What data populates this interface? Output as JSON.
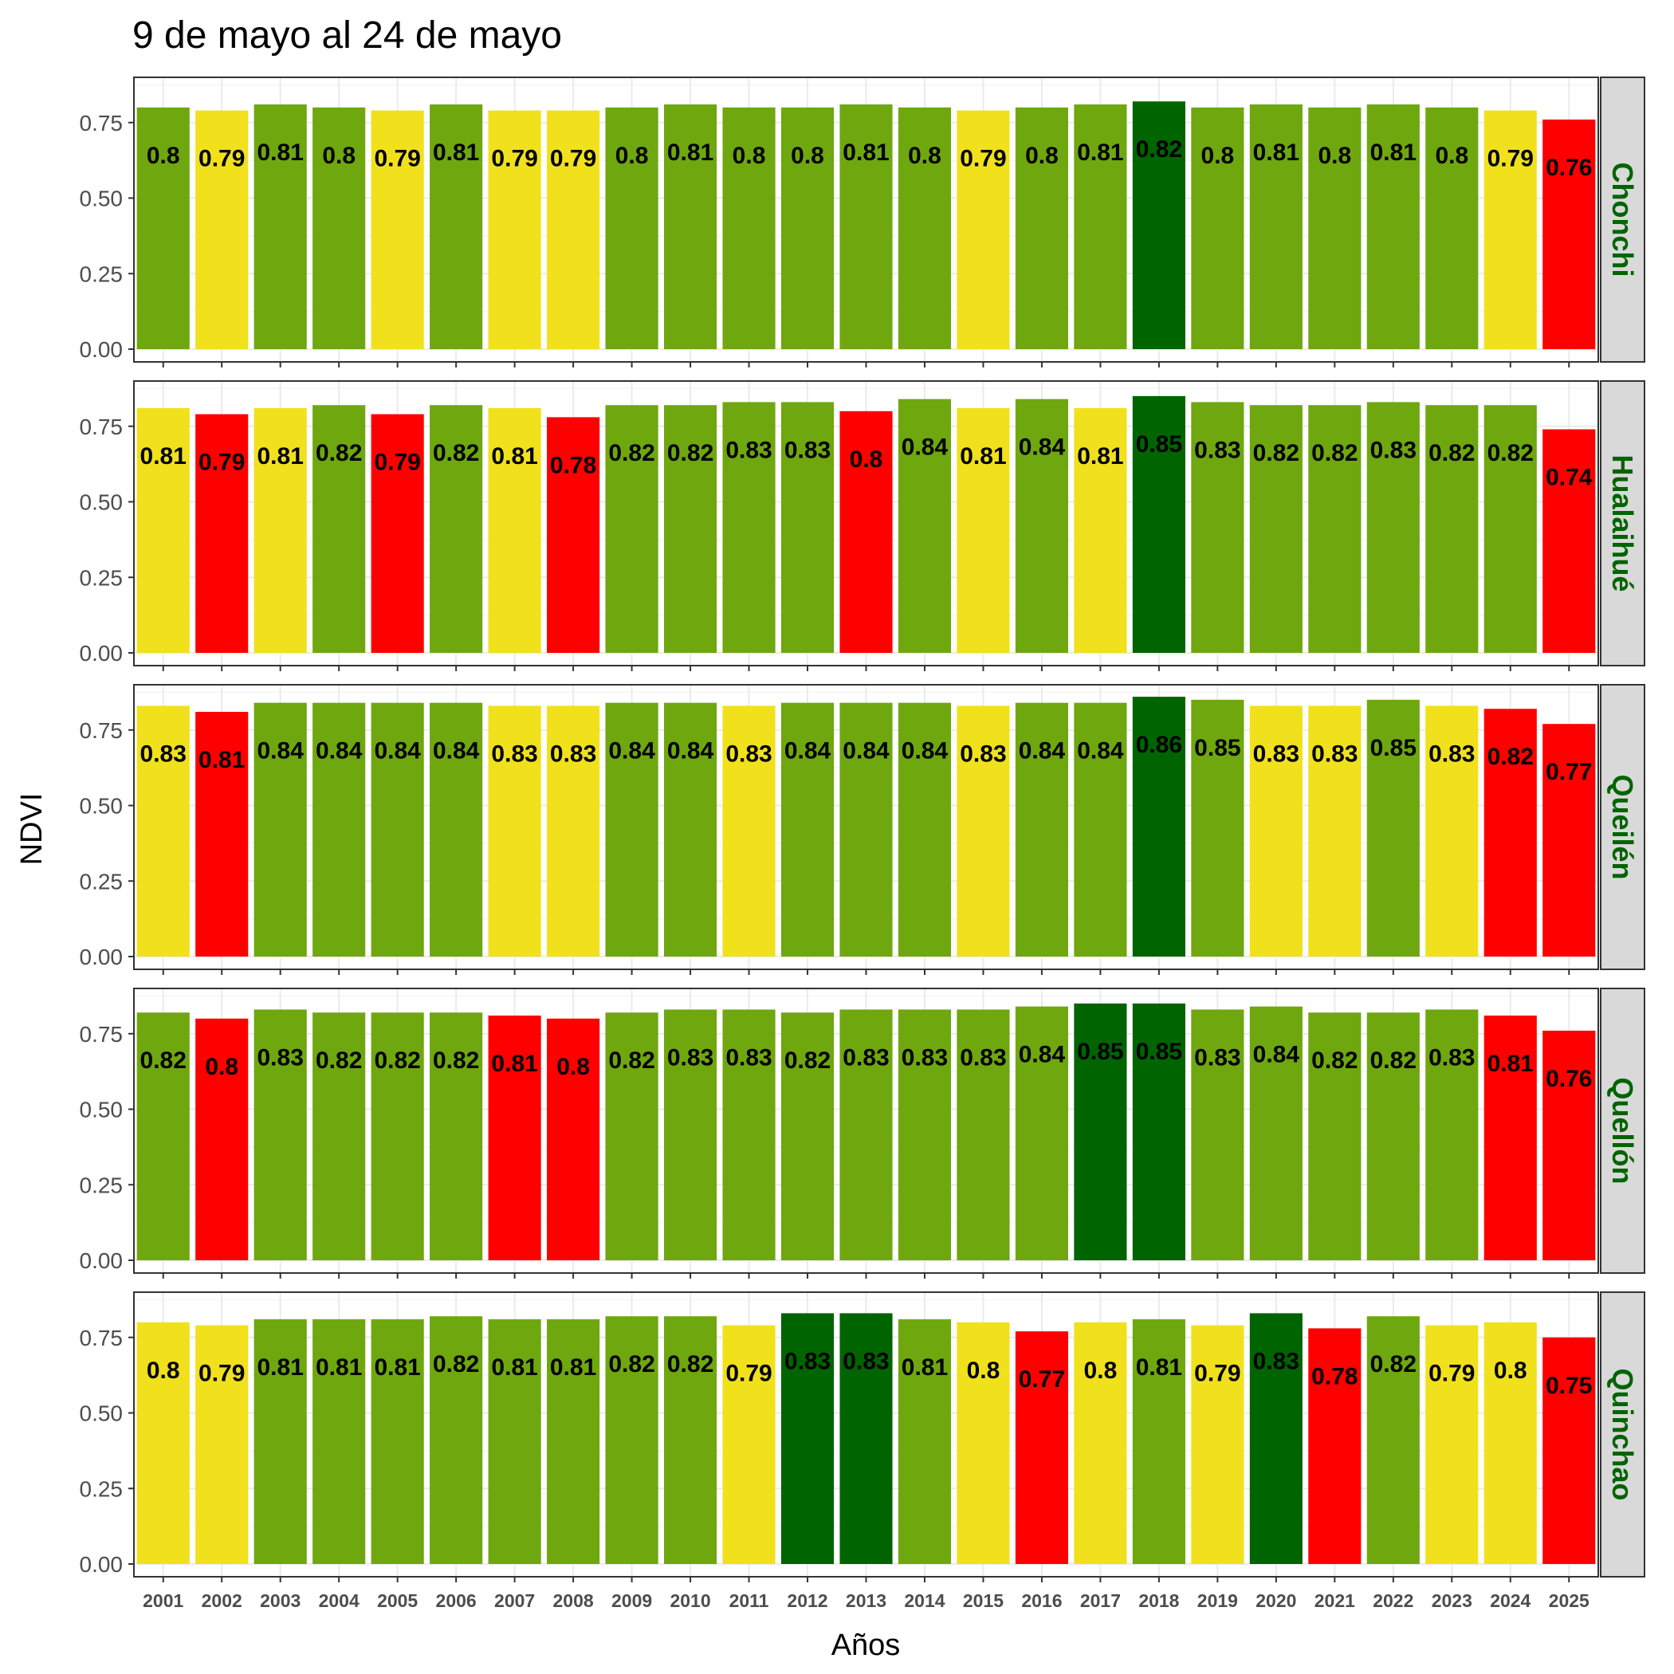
{
  "chart_data": {
    "type": "bar",
    "title": "9 de mayo al 24 de mayo",
    "xlabel": "Años",
    "ylabel": "NDVI",
    "ylim": [
      0,
      0.9
    ],
    "yticks": [
      "0.00",
      "0.25",
      "0.50",
      "0.75"
    ],
    "ytick_values": [
      0,
      0.25,
      0.5,
      0.75
    ],
    "grid": true,
    "categories": [
      "2001",
      "2002",
      "2003",
      "2004",
      "2005",
      "2006",
      "2007",
      "2008",
      "2009",
      "2010",
      "2011",
      "2012",
      "2013",
      "2014",
      "2015",
      "2016",
      "2017",
      "2018",
      "2019",
      "2020",
      "2021",
      "2022",
      "2023",
      "2024",
      "2025"
    ],
    "colors": {
      "red": "#ff0000",
      "yellow": "#f0e11c",
      "green": "#6fa70f",
      "darkgreen": "#006400"
    },
    "facets": [
      {
        "name": "Chonchi",
        "values": [
          0.8,
          0.79,
          0.81,
          0.8,
          0.79,
          0.81,
          0.79,
          0.79,
          0.8,
          0.81,
          0.8,
          0.8,
          0.81,
          0.8,
          0.79,
          0.8,
          0.81,
          0.82,
          0.8,
          0.81,
          0.8,
          0.81,
          0.8,
          0.79,
          0.76
        ],
        "labels": [
          "0.8",
          "0.79",
          "0.81",
          "0.8",
          "0.79",
          "0.81",
          "0.79",
          "0.79",
          "0.8",
          "0.81",
          "0.8",
          "0.8",
          "0.81",
          "0.8",
          "0.79",
          "0.8",
          "0.81",
          "0.82",
          "0.8",
          "0.81",
          "0.8",
          "0.81",
          "0.8",
          "0.79",
          "0.76"
        ],
        "classes": [
          "green",
          "yellow",
          "green",
          "green",
          "yellow",
          "green",
          "yellow",
          "yellow",
          "green",
          "green",
          "green",
          "green",
          "green",
          "green",
          "yellow",
          "green",
          "green",
          "darkgreen",
          "green",
          "green",
          "green",
          "green",
          "green",
          "yellow",
          "red"
        ]
      },
      {
        "name": "Hualaihué",
        "values": [
          0.81,
          0.79,
          0.81,
          0.82,
          0.79,
          0.82,
          0.81,
          0.78,
          0.82,
          0.82,
          0.83,
          0.83,
          0.8,
          0.84,
          0.81,
          0.84,
          0.81,
          0.85,
          0.83,
          0.82,
          0.82,
          0.83,
          0.82,
          0.82,
          0.74
        ],
        "labels": [
          "0.81",
          "0.79",
          "0.81",
          "0.82",
          "0.79",
          "0.82",
          "0.81",
          "0.78",
          "0.82",
          "0.82",
          "0.83",
          "0.83",
          "0.8",
          "0.84",
          "0.81",
          "0.84",
          "0.81",
          "0.85",
          "0.83",
          "0.82",
          "0.82",
          "0.83",
          "0.82",
          "0.82",
          "0.74"
        ],
        "classes": [
          "yellow",
          "red",
          "yellow",
          "green",
          "red",
          "green",
          "yellow",
          "red",
          "green",
          "green",
          "green",
          "green",
          "red",
          "green",
          "yellow",
          "green",
          "yellow",
          "darkgreen",
          "green",
          "green",
          "green",
          "green",
          "green",
          "green",
          "red"
        ]
      },
      {
        "name": "Queilén",
        "values": [
          0.83,
          0.81,
          0.84,
          0.84,
          0.84,
          0.84,
          0.83,
          0.83,
          0.84,
          0.84,
          0.83,
          0.84,
          0.84,
          0.84,
          0.83,
          0.84,
          0.84,
          0.86,
          0.85,
          0.83,
          0.83,
          0.85,
          0.83,
          0.82,
          0.77
        ],
        "labels": [
          "0.83",
          "0.81",
          "0.84",
          "0.84",
          "0.84",
          "0.84",
          "0.83",
          "0.83",
          "0.84",
          "0.84",
          "0.83",
          "0.84",
          "0.84",
          "0.84",
          "0.83",
          "0.84",
          "0.84",
          "0.86",
          "0.85",
          "0.83",
          "0.83",
          "0.85",
          "0.83",
          "0.82",
          "0.77"
        ],
        "classes": [
          "yellow",
          "red",
          "green",
          "green",
          "green",
          "green",
          "yellow",
          "yellow",
          "green",
          "green",
          "yellow",
          "green",
          "green",
          "green",
          "yellow",
          "green",
          "green",
          "darkgreen",
          "green",
          "yellow",
          "yellow",
          "green",
          "yellow",
          "red",
          "red"
        ]
      },
      {
        "name": "Quellón",
        "values": [
          0.82,
          0.8,
          0.83,
          0.82,
          0.82,
          0.82,
          0.81,
          0.8,
          0.82,
          0.83,
          0.83,
          0.82,
          0.83,
          0.83,
          0.83,
          0.84,
          0.85,
          0.85,
          0.83,
          0.84,
          0.82,
          0.82,
          0.83,
          0.81,
          0.76
        ],
        "labels": [
          "0.82",
          "0.8",
          "0.83",
          "0.82",
          "0.82",
          "0.82",
          "0.81",
          "0.8",
          "0.82",
          "0.83",
          "0.83",
          "0.82",
          "0.83",
          "0.83",
          "0.83",
          "0.84",
          "0.85",
          "0.85",
          "0.83",
          "0.84",
          "0.82",
          "0.82",
          "0.83",
          "0.81",
          "0.76"
        ],
        "classes": [
          "green",
          "red",
          "green",
          "green",
          "green",
          "green",
          "red",
          "red",
          "green",
          "green",
          "green",
          "green",
          "green",
          "green",
          "green",
          "green",
          "darkgreen",
          "darkgreen",
          "green",
          "green",
          "green",
          "green",
          "green",
          "red",
          "red"
        ]
      },
      {
        "name": "Quinchao",
        "values": [
          0.8,
          0.79,
          0.81,
          0.81,
          0.81,
          0.82,
          0.81,
          0.81,
          0.82,
          0.82,
          0.79,
          0.83,
          0.83,
          0.81,
          0.8,
          0.77,
          0.8,
          0.81,
          0.79,
          0.83,
          0.78,
          0.82,
          0.79,
          0.8,
          0.75
        ],
        "labels": [
          "0.8",
          "0.79",
          "0.81",
          "0.81",
          "0.81",
          "0.82",
          "0.81",
          "0.81",
          "0.82",
          "0.82",
          "0.79",
          "0.83",
          "0.83",
          "0.81",
          "0.8",
          "0.77",
          "0.8",
          "0.81",
          "0.79",
          "0.83",
          "0.78",
          "0.82",
          "0.79",
          "0.8",
          "0.75"
        ],
        "classes": [
          "yellow",
          "yellow",
          "green",
          "green",
          "green",
          "green",
          "green",
          "green",
          "green",
          "green",
          "yellow",
          "darkgreen",
          "darkgreen",
          "green",
          "yellow",
          "red",
          "yellow",
          "green",
          "yellow",
          "darkgreen",
          "red",
          "green",
          "yellow",
          "yellow",
          "red"
        ]
      }
    ]
  }
}
